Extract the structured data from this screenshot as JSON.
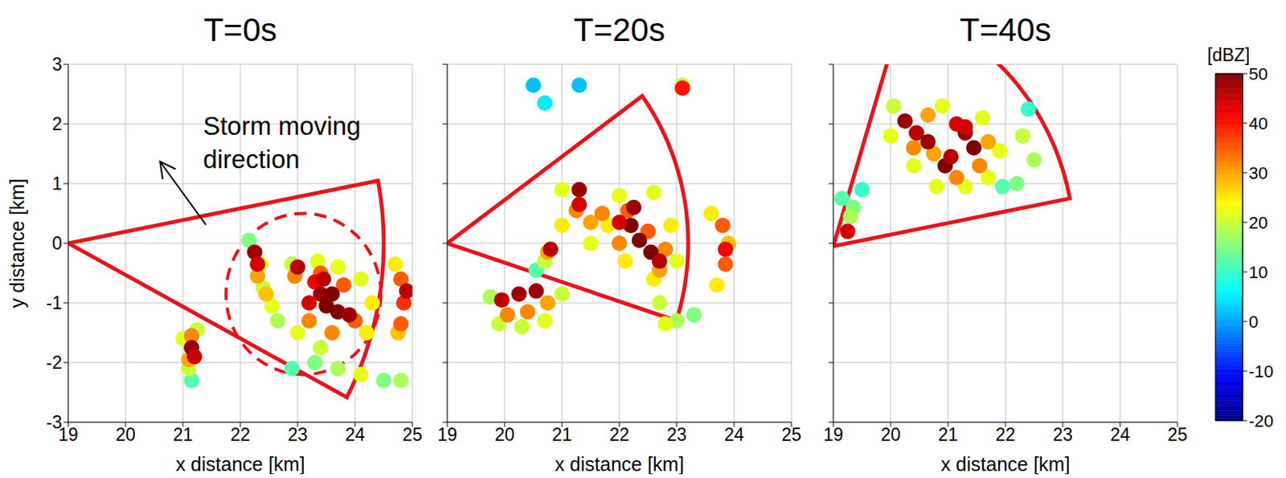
{
  "chart_data": [
    {
      "type": "scatter",
      "title": "T=0s",
      "x_label": "x distance [km]",
      "y_label": "y distance [km]",
      "xlim": [
        19,
        25
      ],
      "ylim": [
        -3,
        3
      ],
      "xticks": [
        19,
        20,
        21,
        22,
        23,
        24,
        25
      ],
      "yticks": [
        -3,
        -2,
        -1,
        0,
        1,
        2,
        3
      ],
      "grid": true,
      "cells": [
        [
          21.15,
          -2.3,
          12
        ],
        [
          21.1,
          -2.1,
          20
        ],
        [
          21.25,
          -1.45,
          20
        ],
        [
          21.0,
          -1.6,
          22
        ],
        [
          22.15,
          0.05,
          15
        ],
        [
          22.35,
          -0.35,
          22
        ],
        [
          22.4,
          -0.75,
          20
        ],
        [
          22.55,
          -1.05,
          22
        ],
        [
          22.65,
          -1.3,
          18
        ],
        [
          22.9,
          -0.35,
          20
        ],
        [
          23.35,
          -0.3,
          22
        ],
        [
          23.7,
          -0.4,
          22
        ],
        [
          24.1,
          -0.6,
          22
        ],
        [
          24.3,
          -1.0,
          25
        ],
        [
          24.2,
          -1.5,
          25
        ],
        [
          23.4,
          -1.75,
          20
        ],
        [
          23.0,
          -1.5,
          22
        ],
        [
          23.3,
          -2.0,
          15
        ],
        [
          23.7,
          -2.1,
          18
        ],
        [
          24.1,
          -2.2,
          22
        ],
        [
          24.5,
          -2.3,
          15
        ],
        [
          24.8,
          -2.3,
          18
        ],
        [
          22.9,
          -2.1,
          12
        ],
        [
          24.7,
          -0.35,
          25
        ],
        [
          24.75,
          -1.5,
          28
        ],
        [
          21.15,
          -1.55,
          32
        ],
        [
          21.1,
          -1.95,
          30
        ],
        [
          22.3,
          -0.55,
          30
        ],
        [
          22.45,
          -0.85,
          28
        ],
        [
          22.95,
          -0.55,
          32
        ],
        [
          23.2,
          -1.3,
          32
        ],
        [
          23.4,
          -0.5,
          35
        ],
        [
          23.8,
          -0.7,
          35
        ],
        [
          24.0,
          -1.3,
          35
        ],
        [
          23.6,
          -1.5,
          32
        ],
        [
          24.8,
          -0.6,
          35
        ],
        [
          24.85,
          -1.0,
          38
        ],
        [
          24.8,
          -1.35,
          35
        ],
        [
          21.15,
          -1.75,
          48
        ],
        [
          21.2,
          -1.9,
          45
        ],
        [
          22.25,
          -0.15,
          48
        ],
        [
          22.3,
          -0.35,
          44
        ],
        [
          23.0,
          -0.4,
          46
        ],
        [
          23.3,
          -0.65,
          42
        ],
        [
          23.4,
          -0.85,
          48
        ],
        [
          23.5,
          -1.05,
          50
        ],
        [
          23.7,
          -1.15,
          50
        ],
        [
          23.9,
          -1.2,
          48
        ],
        [
          23.45,
          -0.6,
          46
        ],
        [
          23.6,
          -0.85,
          50
        ],
        [
          23.2,
          -1.0,
          44
        ],
        [
          24.9,
          -0.8,
          46
        ]
      ],
      "sector": {
        "origin": [
          19,
          0
        ],
        "radius": 5.5,
        "angles": [
          -28,
          11
        ],
        "color": "#e8141c"
      },
      "circle": {
        "center": [
          23.1,
          -0.85
        ],
        "radius": 1.35,
        "color": "#e8141c",
        "line_style": "dashed"
      },
      "annotation": {
        "text": "Storm moving direction",
        "x": 21.35,
        "y": 1.94
      },
      "arrow": {
        "from": [
          21.4,
          0.31
        ],
        "to": [
          20.6,
          1.37
        ]
      }
    },
    {
      "type": "scatter",
      "title": "T=20s",
      "x_label": "x distance [km]",
      "xlim": [
        19,
        25
      ],
      "ylim": [
        -3,
        3
      ],
      "xticks": [
        19,
        20,
        21,
        22,
        23,
        24,
        25
      ],
      "yticks": [
        -3,
        -2,
        -1,
        0,
        1,
        2,
        3
      ],
      "grid": true,
      "tick_labels": "x",
      "cells": [
        [
          20.5,
          2.65,
          2
        ],
        [
          20.7,
          2.35,
          5
        ],
        [
          21.3,
          2.65,
          2
        ],
        [
          23.1,
          2.65,
          20
        ],
        [
          20.55,
          -0.45,
          12
        ],
        [
          20.7,
          -0.3,
          20
        ],
        [
          19.75,
          -0.9,
          18
        ],
        [
          19.9,
          -1.35,
          20
        ],
        [
          20.3,
          -1.4,
          20
        ],
        [
          20.7,
          -1.3,
          22
        ],
        [
          21.0,
          -0.85,
          20
        ],
        [
          21.0,
          0.9,
          22
        ],
        [
          21.0,
          0.3,
          25
        ],
        [
          21.5,
          0.0,
          22
        ],
        [
          21.8,
          0.3,
          25
        ],
        [
          22.0,
          0.8,
          22
        ],
        [
          22.6,
          0.85,
          22
        ],
        [
          22.9,
          0.3,
          25
        ],
        [
          23.0,
          -0.3,
          22
        ],
        [
          22.6,
          -0.6,
          25
        ],
        [
          22.1,
          -0.3,
          25
        ],
        [
          22.7,
          -1.0,
          20
        ],
        [
          23.0,
          -1.3,
          18
        ],
        [
          23.3,
          -1.2,
          15
        ],
        [
          22.8,
          -1.35,
          22
        ],
        [
          23.6,
          0.5,
          25
        ],
        [
          23.7,
          -0.7,
          25
        ],
        [
          23.9,
          0.0,
          28
        ],
        [
          21.25,
          0.55,
          32
        ],
        [
          21.5,
          0.35,
          30
        ],
        [
          21.7,
          0.5,
          32
        ],
        [
          22.0,
          0.0,
          32
        ],
        [
          22.15,
          0.55,
          35
        ],
        [
          22.5,
          0.2,
          35
        ],
        [
          22.8,
          -0.1,
          32
        ],
        [
          22.7,
          -0.45,
          30
        ],
        [
          20.05,
          -1.2,
          32
        ],
        [
          20.4,
          -1.15,
          32
        ],
        [
          20.75,
          -1.0,
          30
        ],
        [
          20.75,
          -0.15,
          30
        ],
        [
          23.85,
          -0.35,
          35
        ],
        [
          23.8,
          0.3,
          35
        ],
        [
          21.3,
          0.9,
          48
        ],
        [
          21.3,
          0.65,
          44
        ],
        [
          22.25,
          0.6,
          48
        ],
        [
          22.2,
          0.3,
          50
        ],
        [
          22.35,
          0.05,
          50
        ],
        [
          22.55,
          -0.15,
          50
        ],
        [
          22.7,
          -0.3,
          46
        ],
        [
          22.0,
          0.35,
          44
        ],
        [
          20.8,
          -0.1,
          46
        ],
        [
          19.95,
          -0.95,
          46
        ],
        [
          20.25,
          -0.85,
          48
        ],
        [
          20.55,
          -0.8,
          48
        ],
        [
          23.85,
          -0.1,
          42
        ],
        [
          23.1,
          2.6,
          40
        ]
      ],
      "sector": {
        "origin": [
          19,
          0
        ],
        "radius": 4.2,
        "angles": [
          -18,
          36
        ],
        "color": "#e8141c"
      }
    },
    {
      "type": "scatter",
      "title": "T=40s",
      "x_label": "x distance [km]",
      "xlim": [
        19,
        25
      ],
      "ylim": [
        -3,
        3
      ],
      "xticks": [
        19,
        20,
        21,
        22,
        23,
        24,
        25
      ],
      "yticks": [
        -3,
        -2,
        -1,
        0,
        1,
        2,
        3
      ],
      "grid": true,
      "tick_labels": "x",
      "cells": [
        [
          19.15,
          0.75,
          12
        ],
        [
          19.35,
          0.6,
          15
        ],
        [
          19.5,
          0.9,
          10
        ],
        [
          19.3,
          0.45,
          18
        ],
        [
          20.05,
          2.3,
          20
        ],
        [
          20.0,
          1.8,
          22
        ],
        [
          20.4,
          1.3,
          22
        ],
        [
          20.8,
          0.95,
          22
        ],
        [
          21.3,
          0.95,
          22
        ],
        [
          21.7,
          1.1,
          22
        ],
        [
          21.9,
          1.55,
          22
        ],
        [
          21.6,
          2.1,
          22
        ],
        [
          20.9,
          2.3,
          22
        ],
        [
          22.2,
          1.0,
          15
        ],
        [
          22.5,
          1.4,
          18
        ],
        [
          22.4,
          2.25,
          10
        ],
        [
          22.3,
          1.8,
          20
        ],
        [
          21.95,
          0.95,
          12
        ],
        [
          20.4,
          1.6,
          32
        ],
        [
          20.75,
          1.5,
          30
        ],
        [
          21.15,
          1.1,
          32
        ],
        [
          21.55,
          1.3,
          32
        ],
        [
          21.7,
          1.7,
          30
        ],
        [
          20.65,
          2.15,
          30
        ],
        [
          20.25,
          2.05,
          48
        ],
        [
          20.45,
          1.85,
          46
        ],
        [
          20.65,
          1.7,
          48
        ],
        [
          20.95,
          1.3,
          50
        ],
        [
          21.05,
          1.45,
          46
        ],
        [
          21.3,
          1.85,
          48
        ],
        [
          21.45,
          1.6,
          50
        ],
        [
          21.15,
          2.0,
          44
        ],
        [
          21.3,
          1.95,
          44
        ],
        [
          19.25,
          0.2,
          44
        ]
      ],
      "sector": {
        "origin": [
          19,
          -0.05
        ],
        "radius": 4.2,
        "angles": [
          11,
          73
        ],
        "color": "#e8141c"
      }
    }
  ],
  "colorbar": {
    "label": "[dBZ]",
    "range": [
      -20,
      50
    ],
    "ticks": [
      -20,
      -10,
      0,
      10,
      20,
      30,
      40,
      50
    ]
  }
}
